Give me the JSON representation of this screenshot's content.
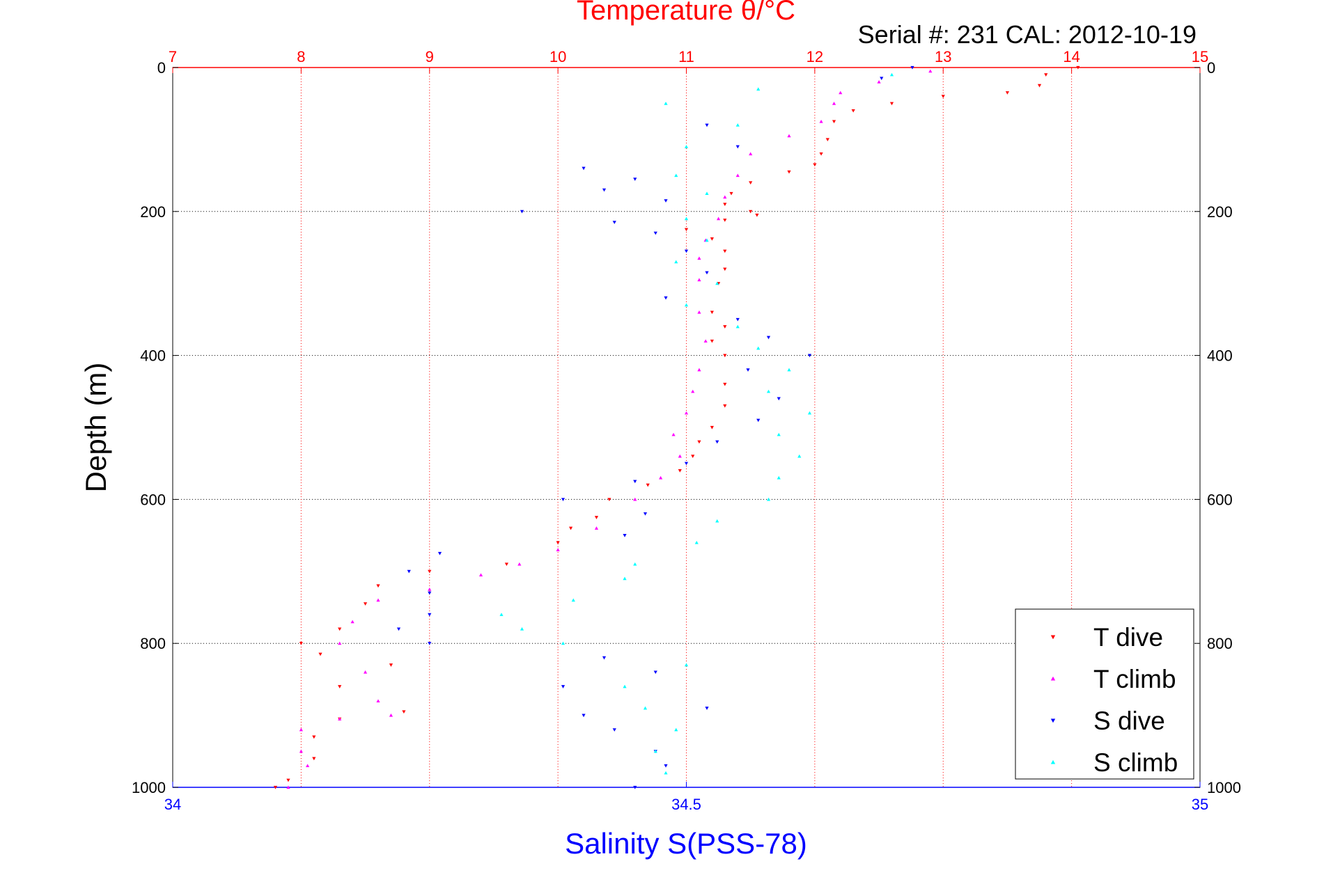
{
  "chart_data": {
    "type": "scatter",
    "title": "Temperature θ/°C",
    "subtitle": "Serial #: 231   CAL: 2012-10-19",
    "ylabel": "Depth (m)",
    "xlabel_bottom": "Salinity S(PSS-78)",
    "ylim": [
      1000,
      0
    ],
    "y_ticks": [
      "0",
      "200",
      "400",
      "600",
      "800",
      "1000"
    ],
    "top_axis": {
      "range": [
        7,
        15
      ],
      "ticks": [
        "7",
        "8",
        "9",
        "10",
        "11",
        "12",
        "13",
        "14",
        "15"
      ],
      "color": "#ff0000"
    },
    "bottom_axis": {
      "range": [
        34,
        35
      ],
      "ticks": [
        "34",
        "34.5",
        "35"
      ],
      "color": "#0000ff"
    },
    "grid": true,
    "legend_position": "bottom-right",
    "series": [
      {
        "name": "T dive",
        "axis": "top",
        "marker": "triangle-down",
        "color": "#ff0000",
        "points": [
          [
            14.05,
            0
          ],
          [
            13.8,
            10
          ],
          [
            13.75,
            25
          ],
          [
            13.5,
            35
          ],
          [
            13.0,
            40
          ],
          [
            12.6,
            50
          ],
          [
            12.3,
            60
          ],
          [
            12.15,
            75
          ],
          [
            12.1,
            100
          ],
          [
            12.05,
            120
          ],
          [
            12.0,
            135
          ],
          [
            11.8,
            145
          ],
          [
            11.5,
            160
          ],
          [
            11.35,
            175
          ],
          [
            11.3,
            190
          ],
          [
            11.5,
            200
          ],
          [
            11.55,
            205
          ],
          [
            11.3,
            212
          ],
          [
            11.0,
            225
          ],
          [
            11.2,
            238
          ],
          [
            11.3,
            255
          ],
          [
            11.3,
            280
          ],
          [
            11.25,
            300
          ],
          [
            11.2,
            340
          ],
          [
            11.3,
            360
          ],
          [
            11.2,
            380
          ],
          [
            11.3,
            400
          ],
          [
            11.3,
            440
          ],
          [
            11.3,
            470
          ],
          [
            11.2,
            500
          ],
          [
            11.1,
            520
          ],
          [
            11.05,
            540
          ],
          [
            10.95,
            560
          ],
          [
            10.7,
            580
          ],
          [
            10.4,
            600
          ],
          [
            10.3,
            625
          ],
          [
            10.1,
            640
          ],
          [
            10.0,
            660
          ],
          [
            9.6,
            690
          ],
          [
            9.0,
            700
          ],
          [
            8.6,
            720
          ],
          [
            8.5,
            745
          ],
          [
            8.3,
            780
          ],
          [
            8.0,
            800
          ],
          [
            8.15,
            815
          ],
          [
            8.7,
            830
          ],
          [
            8.3,
            860
          ],
          [
            8.8,
            895
          ],
          [
            8.3,
            905
          ],
          [
            8.1,
            930
          ],
          [
            8.1,
            960
          ],
          [
            7.9,
            990
          ],
          [
            7.8,
            1000
          ]
        ]
      },
      {
        "name": "T climb",
        "axis": "top",
        "marker": "triangle-up",
        "color": "#ff00ff",
        "points": [
          [
            12.9,
            5
          ],
          [
            12.5,
            20
          ],
          [
            12.2,
            35
          ],
          [
            12.15,
            50
          ],
          [
            12.05,
            75
          ],
          [
            11.8,
            95
          ],
          [
            11.5,
            120
          ],
          [
            11.4,
            150
          ],
          [
            11.3,
            180
          ],
          [
            11.25,
            210
          ],
          [
            11.15,
            240
          ],
          [
            11.1,
            265
          ],
          [
            11.1,
            295
          ],
          [
            11.1,
            340
          ],
          [
            11.15,
            380
          ],
          [
            11.1,
            420
          ],
          [
            11.05,
            450
          ],
          [
            11.0,
            480
          ],
          [
            10.9,
            510
          ],
          [
            10.95,
            540
          ],
          [
            10.8,
            570
          ],
          [
            10.6,
            600
          ],
          [
            10.3,
            640
          ],
          [
            10.0,
            670
          ],
          [
            9.7,
            690
          ],
          [
            9.4,
            705
          ],
          [
            9.0,
            725
          ],
          [
            8.6,
            740
          ],
          [
            8.4,
            770
          ],
          [
            8.3,
            800
          ],
          [
            8.5,
            840
          ],
          [
            8.6,
            880
          ],
          [
            8.7,
            900
          ],
          [
            8.3,
            905
          ],
          [
            8.0,
            920
          ],
          [
            8.0,
            950
          ],
          [
            8.05,
            970
          ],
          [
            7.9,
            1000
          ]
        ]
      },
      {
        "name": "S dive",
        "axis": "bottom",
        "marker": "triangle-down",
        "color": "#0000ff",
        "points": [
          [
            34.72,
            0
          ],
          [
            34.69,
            15
          ],
          [
            34.52,
            80
          ],
          [
            34.55,
            110
          ],
          [
            34.4,
            140
          ],
          [
            34.45,
            155
          ],
          [
            34.42,
            170
          ],
          [
            34.48,
            185
          ],
          [
            34.34,
            200
          ],
          [
            34.43,
            215
          ],
          [
            34.47,
            230
          ],
          [
            34.5,
            255
          ],
          [
            34.52,
            285
          ],
          [
            34.48,
            320
          ],
          [
            34.55,
            350
          ],
          [
            34.58,
            375
          ],
          [
            34.62,
            400
          ],
          [
            34.56,
            420
          ],
          [
            34.59,
            460
          ],
          [
            34.57,
            490
          ],
          [
            34.53,
            520
          ],
          [
            34.5,
            550
          ],
          [
            34.45,
            575
          ],
          [
            34.38,
            600
          ],
          [
            34.46,
            620
          ],
          [
            34.44,
            650
          ],
          [
            34.26,
            675
          ],
          [
            34.23,
            700
          ],
          [
            34.25,
            730
          ],
          [
            34.25,
            760
          ],
          [
            34.22,
            780
          ],
          [
            34.25,
            800
          ],
          [
            34.42,
            820
          ],
          [
            34.47,
            840
          ],
          [
            34.38,
            860
          ],
          [
            34.52,
            890
          ],
          [
            34.4,
            900
          ],
          [
            34.43,
            920
          ],
          [
            34.47,
            950
          ],
          [
            34.48,
            970
          ],
          [
            34.45,
            1000
          ]
        ]
      },
      {
        "name": "S climb",
        "axis": "bottom",
        "marker": "triangle-up",
        "color": "#00ffff",
        "points": [
          [
            34.7,
            10
          ],
          [
            34.57,
            30
          ],
          [
            34.48,
            50
          ],
          [
            34.55,
            80
          ],
          [
            34.5,
            110
          ],
          [
            34.49,
            150
          ],
          [
            34.52,
            175
          ],
          [
            34.5,
            210
          ],
          [
            34.52,
            240
          ],
          [
            34.49,
            270
          ],
          [
            34.53,
            300
          ],
          [
            34.5,
            330
          ],
          [
            34.55,
            360
          ],
          [
            34.57,
            390
          ],
          [
            34.6,
            420
          ],
          [
            34.58,
            450
          ],
          [
            34.62,
            480
          ],
          [
            34.59,
            510
          ],
          [
            34.61,
            540
          ],
          [
            34.59,
            570
          ],
          [
            34.58,
            600
          ],
          [
            34.53,
            630
          ],
          [
            34.51,
            660
          ],
          [
            34.45,
            690
          ],
          [
            34.44,
            710
          ],
          [
            34.39,
            740
          ],
          [
            34.32,
            760
          ],
          [
            34.34,
            780
          ],
          [
            34.38,
            800
          ],
          [
            34.5,
            830
          ],
          [
            34.44,
            860
          ],
          [
            34.46,
            890
          ],
          [
            34.49,
            920
          ],
          [
            34.47,
            950
          ],
          [
            34.48,
            980
          ]
        ]
      }
    ]
  }
}
